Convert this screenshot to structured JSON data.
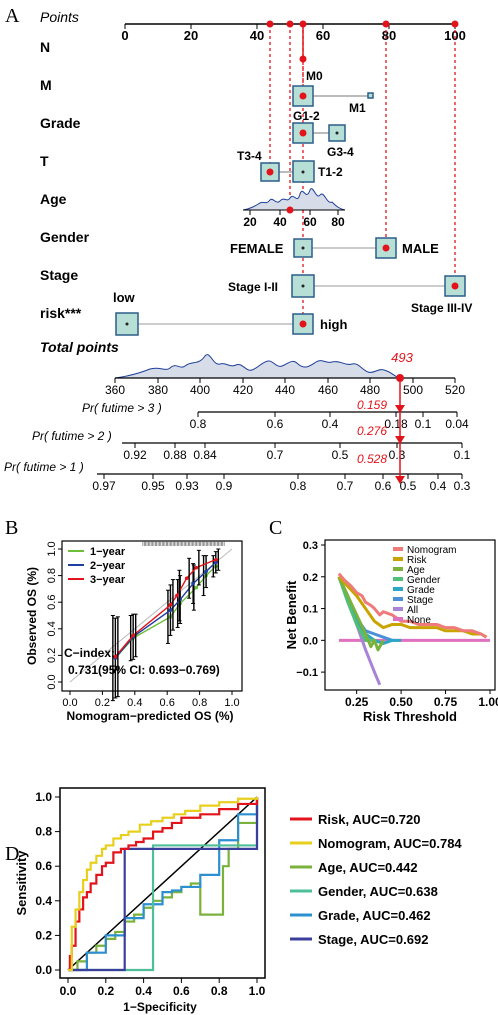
{
  "panel_labels": {
    "a": "A",
    "b": "B",
    "c": "C",
    "d": "D"
  },
  "colors": {
    "box_fill": "#b7dfd6",
    "box_stroke": "#2b5d8a",
    "dot": "#e3131b",
    "density": "#1e3f9a",
    "density_fill": "#d6dce8",
    "red_label": "#e3131b",
    "b_1year": "#6cbf3a",
    "b_2year": "#1f3fa0",
    "b_3year": "#e3131b",
    "c_nomogram": "#f07a7a",
    "c_risk": "#c9a400",
    "c_age": "#7ab23c",
    "c_gender": "#4fbf7a",
    "c_grade": "#2aa6c7",
    "c_stage": "#4b8fd9",
    "c_all": "#a883d6",
    "c_none": "#e070c0",
    "d_risk": "#e3131b",
    "d_nomogram": "#e8cf1e",
    "d_age": "#7ab23c",
    "d_gender": "#4fbf9a",
    "d_grade": "#2b8fd0",
    "d_stage": "#3b3f9c"
  },
  "nomogram": {
    "rows": [
      {
        "name": "Points"
      },
      {
        "name": "N"
      },
      {
        "name": "M"
      },
      {
        "name": "Grade"
      },
      {
        "name": "T"
      },
      {
        "name": "Age"
      },
      {
        "name": "Gender"
      },
      {
        "name": "Stage"
      },
      {
        "name": "risk***"
      },
      {
        "name": "Total points"
      },
      {
        "name": "Pr( futime > 3 )"
      },
      {
        "name": "Pr( futime > 2 )"
      },
      {
        "name": "Pr( futime > 1 )"
      }
    ],
    "points_ticks": [
      "0",
      "20",
      "40",
      "60",
      "80",
      "100"
    ],
    "category_labels": {
      "m0": "M0",
      "m1": "M1",
      "g12": "G1-2",
      "g34": "G3-4",
      "t34": "T3-4",
      "t12": "T1-2",
      "female": "FEMALE",
      "male": "MALE",
      "s12": "Stage I-II",
      "s34": "Stage III-IV",
      "low": "low",
      "high": "high"
    },
    "age_ticks": [
      "20",
      "40",
      "60",
      "80"
    ],
    "total_ticks": [
      "360",
      "380",
      "400",
      "420",
      "440",
      "460",
      "480",
      "500",
      "520"
    ],
    "total_value": "493",
    "pr3_ticks": [
      "0.8",
      "0.6",
      "0.4",
      "0.18",
      "0.1",
      "0.04"
    ],
    "pr3_value": "0.159",
    "pr2_ticks": [
      "0.92",
      "0.88",
      "0.84",
      "0.7",
      "0.5",
      "0.3",
      "0.1"
    ],
    "pr2_value": "0.276",
    "pr1_ticks": [
      "0.97",
      "0.95",
      "0.93",
      "0.9",
      "0.8",
      "0.7",
      "0.6",
      "0.5",
      "0.4",
      "0.3"
    ],
    "pr1_value": "0.528"
  },
  "chart_data": [
    {
      "type": "line",
      "panel": "B",
      "xlabel": "Nomogram−predicted OS (%)",
      "ylabel": "Observed OS (%)",
      "xlim": [
        0,
        1
      ],
      "ylim": [
        0,
        1
      ],
      "x_ticks": [
        "0.0",
        "0.2",
        "0.4",
        "0.6",
        "0.8",
        "1.0"
      ],
      "y_ticks": [
        "0.0",
        "0.2",
        "0.4",
        "0.6",
        "0.8",
        "1.0"
      ],
      "legend": [
        "1−year",
        "2−year",
        "3−year"
      ],
      "series": [
        {
          "name": "1−year",
          "x": [
            0.28,
            0.39,
            0.62,
            0.68,
            0.78,
            0.84,
            0.9
          ],
          "y": [
            0.18,
            0.33,
            0.49,
            0.59,
            0.71,
            0.8,
            0.87
          ],
          "err": [
            0.32,
            0.17,
            0.2,
            0.18,
            0.17,
            0.15,
            0.08
          ]
        },
        {
          "name": "2−year",
          "x": [
            0.28,
            0.39,
            0.62,
            0.68,
            0.76,
            0.84,
            0.9
          ],
          "y": [
            0.18,
            0.34,
            0.54,
            0.62,
            0.74,
            0.83,
            0.9
          ],
          "err": [
            0.3,
            0.17,
            0.19,
            0.18,
            0.15,
            0.12,
            0.08
          ]
        },
        {
          "name": "3−year",
          "x": [
            0.28,
            0.39,
            0.62,
            0.66,
            0.72,
            0.78,
            0.9
          ],
          "y": [
            0.19,
            0.35,
            0.58,
            0.65,
            0.78,
            0.86,
            0.92
          ],
          "err": [
            0.3,
            0.16,
            0.19,
            0.19,
            0.15,
            0.13,
            0.08
          ]
        }
      ],
      "annotation_line1": "C−index:",
      "annotation_line2": "0.731(95% CI: 0.693−0.769)"
    },
    {
      "type": "line",
      "panel": "C",
      "xlabel": "Risk Threshold",
      "ylabel": "Net Benefit",
      "xlim": [
        0.1,
        1.0
      ],
      "ylim": [
        -0.15,
        0.3
      ],
      "x_ticks": [
        "0.25",
        "0.50",
        "0.75",
        "1.00"
      ],
      "y_ticks": [
        "−0.1",
        "0.0",
        "0.1",
        "0.2",
        "0.3"
      ],
      "legend_position": "top-right",
      "series": [
        {
          "name": "Nomogram",
          "x": [
            0.15,
            0.18,
            0.2,
            0.22,
            0.25,
            0.28,
            0.3,
            0.33,
            0.35,
            0.38,
            0.4,
            0.45,
            0.5,
            0.55,
            0.6,
            0.65,
            0.7,
            0.75,
            0.8,
            0.85,
            0.9,
            0.95,
            0.98
          ],
          "y": [
            0.21,
            0.19,
            0.18,
            0.17,
            0.15,
            0.14,
            0.12,
            0.11,
            0.1,
            0.08,
            0.09,
            0.08,
            0.06,
            0.06,
            0.05,
            0.05,
            0.05,
            0.04,
            0.04,
            0.03,
            0.03,
            0.02,
            0.01
          ]
        },
        {
          "name": "Risk",
          "x": [
            0.15,
            0.2,
            0.25,
            0.3,
            0.35,
            0.4,
            0.45,
            0.5,
            0.55,
            0.6,
            0.65,
            0.7,
            0.75,
            0.8,
            0.85,
            0.9,
            0.95,
            0.98
          ],
          "y": [
            0.2,
            0.17,
            0.14,
            0.1,
            0.06,
            0.04,
            0.05,
            0.05,
            0.04,
            0.04,
            0.04,
            0.04,
            0.03,
            0.03,
            0.03,
            0.02,
            0.02,
            0.01
          ]
        },
        {
          "name": "Age",
          "x": [
            0.15,
            0.2,
            0.25,
            0.3,
            0.33,
            0.35,
            0.37,
            0.4
          ],
          "y": [
            0.2,
            0.14,
            0.08,
            0.02,
            -0.02,
            0.0,
            -0.03,
            0.0
          ]
        },
        {
          "name": "Gender",
          "x": [
            0.15,
            0.2,
            0.25,
            0.3,
            0.35
          ],
          "y": [
            0.2,
            0.12,
            0.05,
            0.0,
            0.0
          ]
        },
        {
          "name": "Grade",
          "x": [
            0.15,
            0.2,
            0.25,
            0.3,
            0.35,
            0.4,
            0.45,
            0.5
          ],
          "y": [
            0.2,
            0.13,
            0.06,
            0.02,
            0.0,
            -0.01,
            0.0,
            0.0
          ]
        },
        {
          "name": "Stage",
          "x": [
            0.15,
            0.2,
            0.25,
            0.3,
            0.35,
            0.4,
            0.45
          ],
          "y": [
            0.2,
            0.14,
            0.07,
            0.03,
            0.02,
            0.01,
            0.0
          ]
        },
        {
          "name": "All",
          "x": [
            0.15,
            0.2,
            0.25,
            0.3,
            0.35,
            0.38
          ],
          "y": [
            0.2,
            0.13,
            0.05,
            -0.03,
            -0.1,
            -0.14
          ]
        },
        {
          "name": "None",
          "x": [
            0.15,
            1.0
          ],
          "y": [
            0.0,
            0.0
          ]
        }
      ]
    },
    {
      "type": "line",
      "panel": "D",
      "xlabel": "1−Specificity",
      "ylabel": "Sensitivity",
      "xlim": [
        0,
        1
      ],
      "ylim": [
        0,
        1
      ],
      "x_ticks": [
        "0.0",
        "0.2",
        "0.4",
        "0.6",
        "0.8",
        "1.0"
      ],
      "y_ticks": [
        "0.0",
        "0.2",
        "0.4",
        "0.6",
        "0.8",
        "1.0"
      ],
      "series": [
        {
          "name": "Risk",
          "legend": "Risk, AUC=0.720",
          "x": [
            0,
            0.01,
            0.02,
            0.04,
            0.06,
            0.08,
            0.1,
            0.12,
            0.15,
            0.18,
            0.2,
            0.24,
            0.28,
            0.32,
            0.36,
            0.4,
            0.45,
            0.5,
            0.55,
            0.6,
            0.7,
            0.8,
            0.9,
            1
          ],
          "y": [
            0,
            0.08,
            0.14,
            0.28,
            0.35,
            0.42,
            0.45,
            0.5,
            0.55,
            0.6,
            0.62,
            0.68,
            0.7,
            0.72,
            0.74,
            0.76,
            0.8,
            0.82,
            0.85,
            0.88,
            0.9,
            0.93,
            0.96,
            1
          ]
        },
        {
          "name": "Nomogram",
          "legend": "Nomogram, AUC=0.784",
          "x": [
            0,
            0.02,
            0.04,
            0.06,
            0.08,
            0.1,
            0.12,
            0.15,
            0.18,
            0.2,
            0.24,
            0.28,
            0.32,
            0.38,
            0.44,
            0.5,
            0.56,
            0.62,
            0.7,
            0.8,
            0.9,
            1
          ],
          "y": [
            0,
            0.25,
            0.35,
            0.45,
            0.52,
            0.58,
            0.62,
            0.66,
            0.7,
            0.72,
            0.76,
            0.78,
            0.8,
            0.84,
            0.86,
            0.88,
            0.9,
            0.92,
            0.95,
            0.97,
            0.99,
            1
          ]
        },
        {
          "name": "Age",
          "legend": "Age, AUC=0.442",
          "x": [
            0,
            0.05,
            0.1,
            0.15,
            0.2,
            0.25,
            0.3,
            0.35,
            0.4,
            0.45,
            0.5,
            0.55,
            0.6,
            0.65,
            0.7,
            0.75,
            0.8,
            0.82,
            0.85,
            0.9,
            1
          ],
          "y": [
            0,
            0.05,
            0.1,
            0.14,
            0.18,
            0.22,
            0.28,
            0.32,
            0.36,
            0.4,
            0.42,
            0.45,
            0.48,
            0.5,
            0.32,
            0.32,
            0.32,
            0.6,
            0.7,
            0.85,
            1
          ]
        },
        {
          "name": "Gender",
          "legend": "Gender, AUC=0.638",
          "x": [
            0,
            0.45,
            1
          ],
          "y": [
            0,
            0.72,
            1
          ]
        },
        {
          "name": "Grade",
          "legend": "Grade, AUC=0.462",
          "x": [
            0,
            0.1,
            0.2,
            0.3,
            0.4,
            0.5,
            0.55,
            0.6,
            0.7,
            0.8,
            0.9,
            1
          ],
          "y": [
            0,
            0.1,
            0.2,
            0.3,
            0.38,
            0.45,
            0.46,
            0.48,
            0.55,
            0.75,
            0.9,
            1
          ]
        },
        {
          "name": "Stage",
          "legend": "Stage, AUC=0.692",
          "x": [
            0,
            0.3,
            1
          ],
          "y": [
            0,
            0.7,
            1
          ]
        }
      ]
    }
  ]
}
